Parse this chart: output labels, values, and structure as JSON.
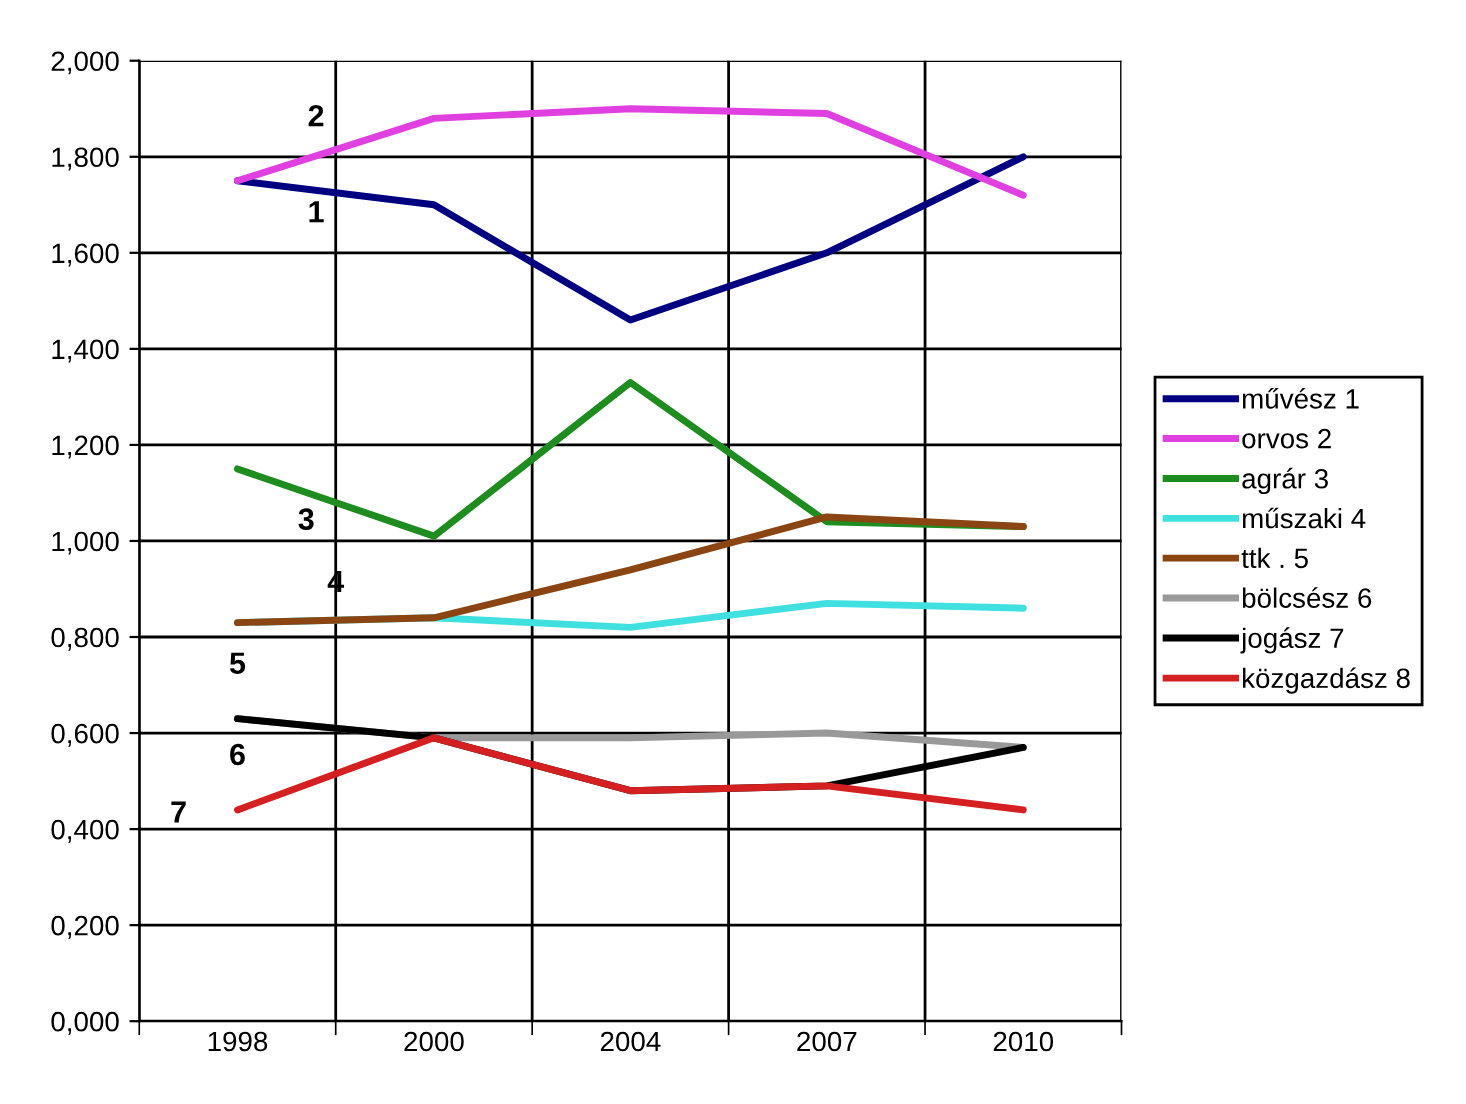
{
  "chart_data": {
    "type": "line",
    "categories": [
      "1998",
      "2000",
      "2004",
      "2007",
      "2010"
    ],
    "ylim": [
      0,
      2.0
    ],
    "yticks": [
      {
        "value": 0,
        "label": "0,000"
      },
      {
        "value": 0.2,
        "label": "0,200"
      },
      {
        "value": 0.4,
        "label": "0,400"
      },
      {
        "value": 0.6,
        "label": "0,600"
      },
      {
        "value": 0.8,
        "label": "0,800"
      },
      {
        "value": 1.0,
        "label": "1,000"
      },
      {
        "value": 1.2,
        "label": "1,200"
      },
      {
        "value": 1.4,
        "label": "1,400"
      },
      {
        "value": 1.6,
        "label": "1,600"
      },
      {
        "value": 1.8,
        "label": "1,800"
      },
      {
        "value": 2.0,
        "label": "2,000"
      }
    ],
    "grid": true,
    "legend": "right",
    "marker": "none",
    "line_style": "solid",
    "series": [
      {
        "name": "művész 1",
        "color": "#000080",
        "values": [
          1.75,
          1.7,
          1.46,
          1.6,
          1.8
        ]
      },
      {
        "name": "orvos 2",
        "color": "#e040e0",
        "values": [
          1.75,
          1.88,
          1.9,
          1.89,
          1.72
        ]
      },
      {
        "name": "agrár 3",
        "color": "#1e8c1e",
        "values": [
          1.15,
          1.01,
          1.33,
          1.04,
          1.03
        ]
      },
      {
        "name": "műszaki 4",
        "color": "#40e0e0",
        "values": [
          0.83,
          0.84,
          0.82,
          0.87,
          0.86
        ]
      },
      {
        "name": "ttk . 5",
        "color": "#8b4513",
        "values": [
          0.83,
          0.84,
          0.94,
          1.05,
          1.03
        ]
      },
      {
        "name": "bölcsész 6",
        "color": "#999999",
        "values": [
          0.63,
          0.59,
          0.59,
          0.6,
          0.57
        ]
      },
      {
        "name": "jogász 7",
        "color": "#000000",
        "values": [
          0.63,
          0.59,
          0.48,
          0.49,
          0.57
        ]
      },
      {
        "name": "közgazdász 8",
        "color": "#d42020",
        "values": [
          0.44,
          0.59,
          0.48,
          0.49,
          0.44
        ]
      }
    ],
    "annotations": [
      "2",
      "1",
      "3",
      "4",
      "5",
      "6",
      "7"
    ]
  }
}
